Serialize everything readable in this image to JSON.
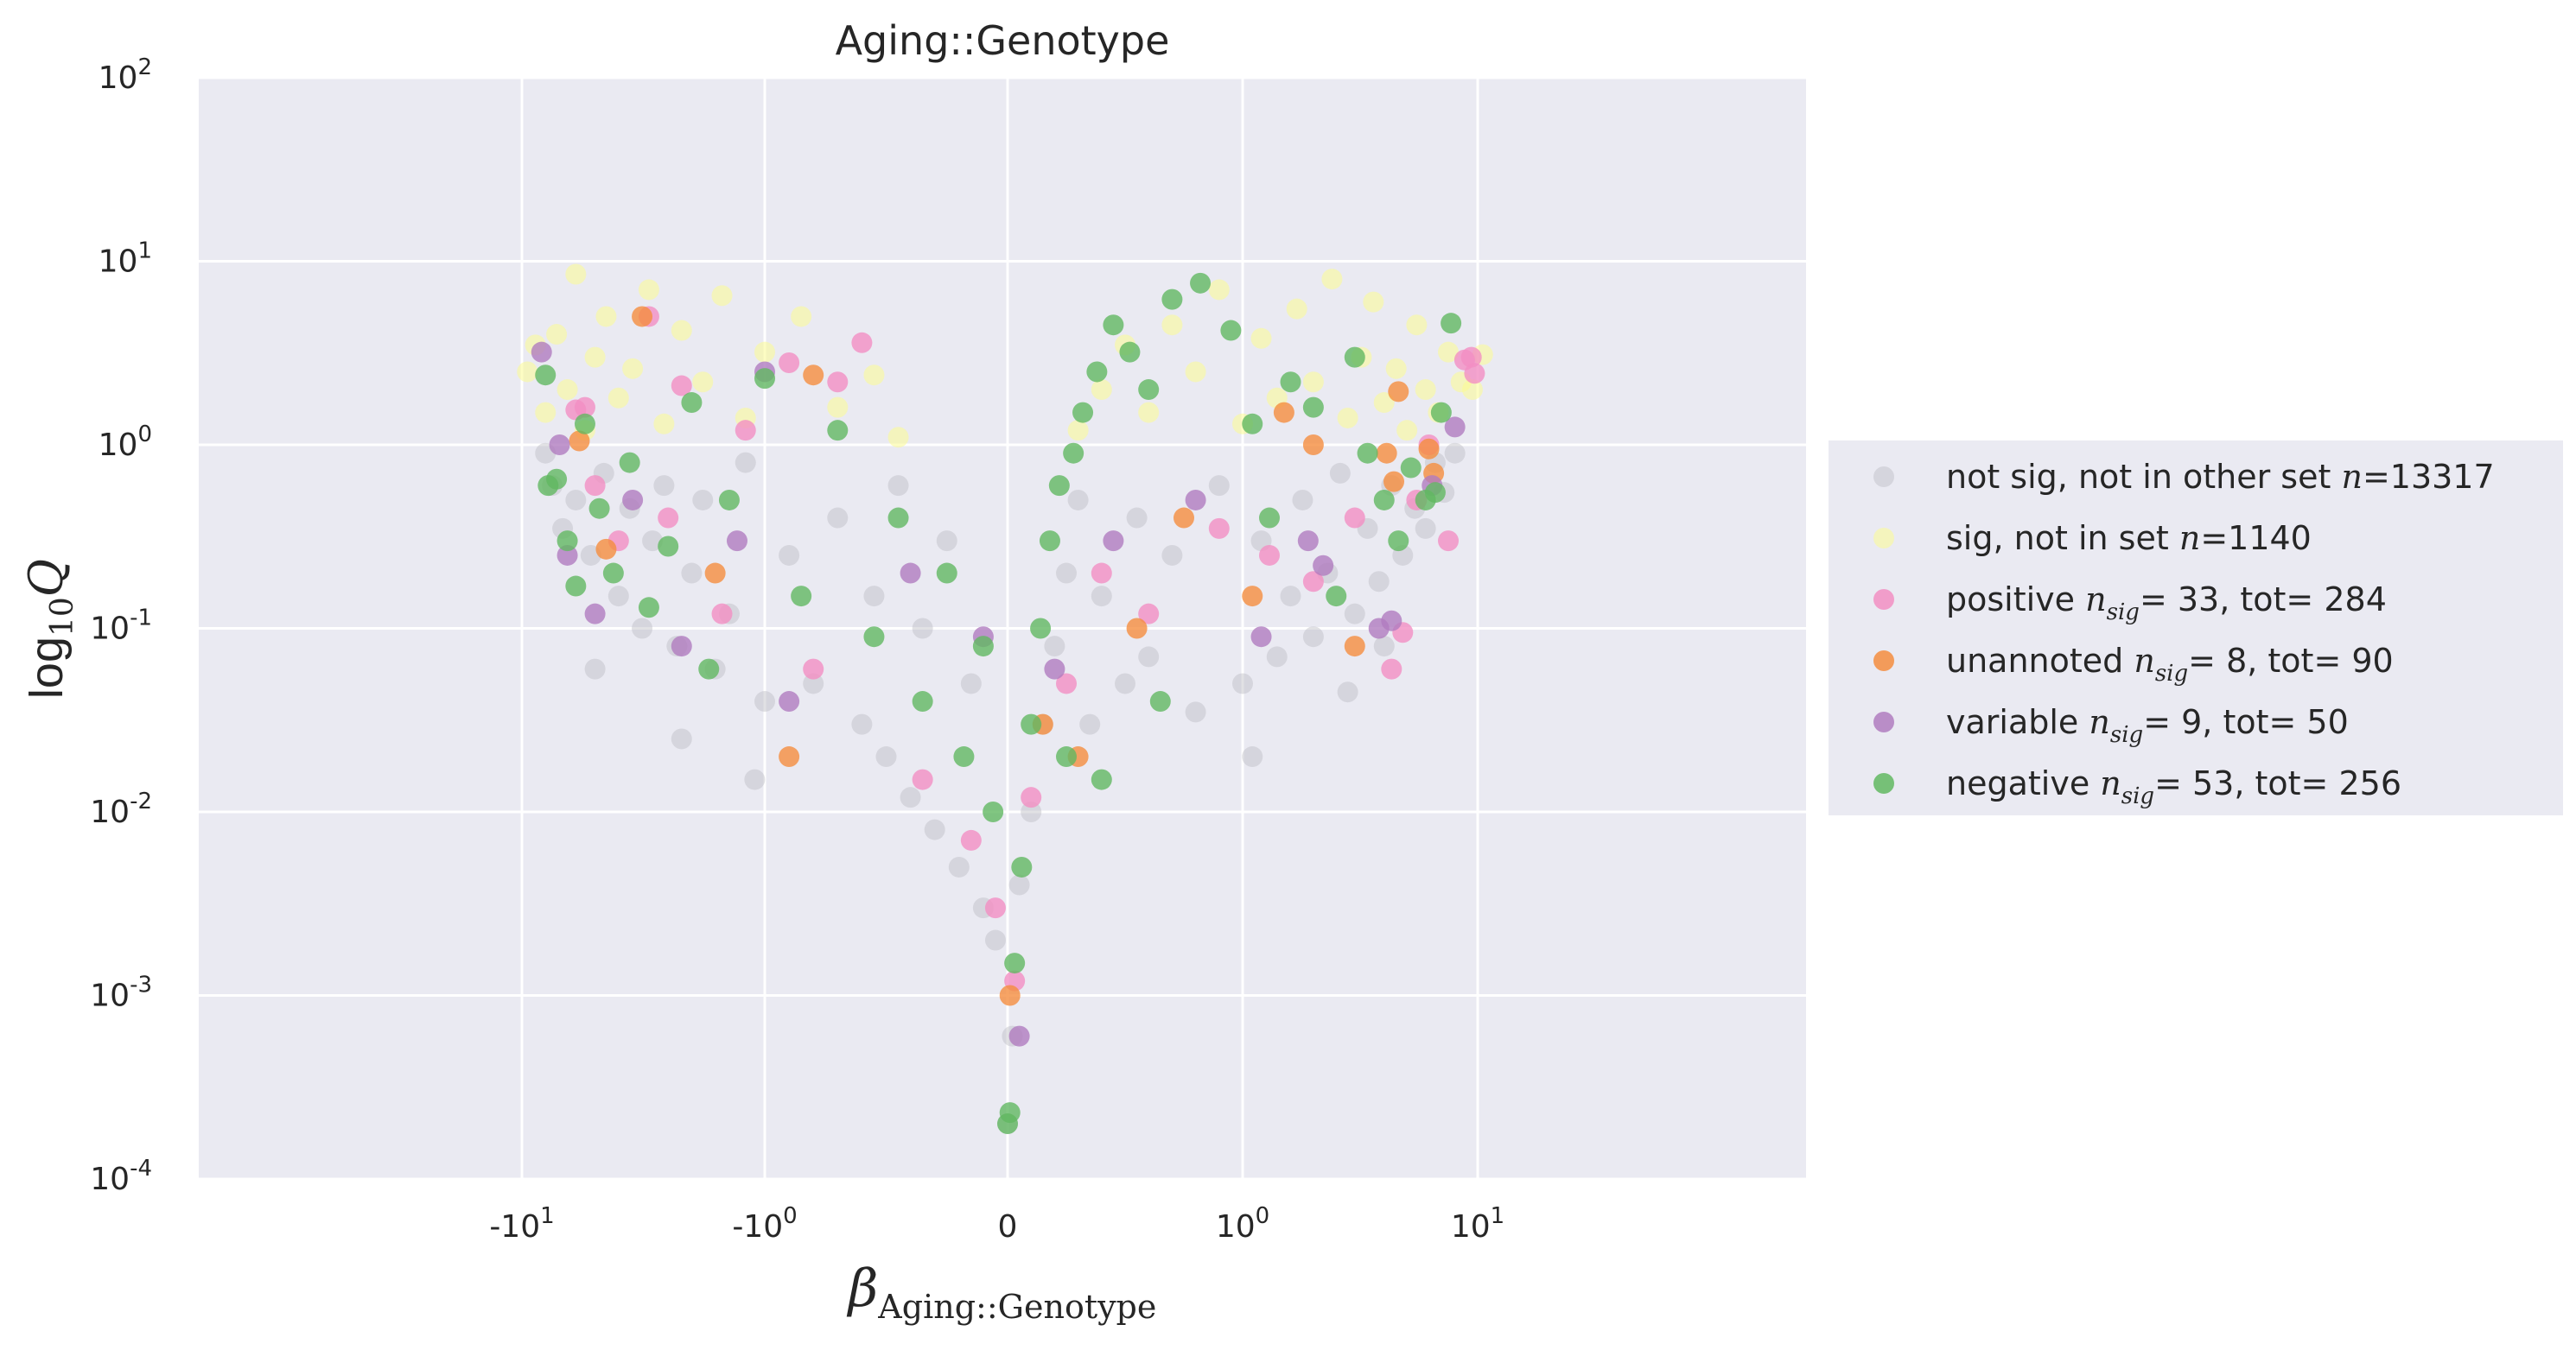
{
  "chart_data": {
    "type": "scatter",
    "title": "Aging::Genotype",
    "xlabel": "β_Aging::Genotype",
    "ylabel": "log10 Q",
    "xlabel_main": "β",
    "xlabel_sub": "Aging::Genotype",
    "ylabel_main": "log",
    "ylabel_sub": "10",
    "ylabel_var": "Q",
    "x_scale": "symlog",
    "y_scale": "log",
    "xlim": [
      -12,
      12
    ],
    "ylim": [
      0.0001,
      100
    ],
    "grid": true,
    "background": "#eaeaf2",
    "legend_position": "right",
    "x_ticks": [
      {
        "value": -10,
        "base": "-10",
        "exp": "1"
      },
      {
        "value": -1,
        "base": "-10",
        "exp": "0"
      },
      {
        "value": 0,
        "base": "0",
        "exp": ""
      },
      {
        "value": 1,
        "base": "10",
        "exp": "0"
      },
      {
        "value": 10,
        "base": "10",
        "exp": "1"
      }
    ],
    "y_ticks": [
      {
        "value": 0.0001,
        "base": "10",
        "exp": "-4"
      },
      {
        "value": 0.001,
        "base": "10",
        "exp": "-3"
      },
      {
        "value": 0.01,
        "base": "10",
        "exp": "-2"
      },
      {
        "value": 0.1,
        "base": "10",
        "exp": "-1"
      },
      {
        "value": 1,
        "base": "10",
        "exp": "0"
      },
      {
        "value": 10,
        "base": "10",
        "exp": "1"
      },
      {
        "value": 100,
        "base": "10",
        "exp": "2"
      }
    ],
    "series": [
      {
        "name": "not sig, not in other set n=13317",
        "label": "not sig, not in other set ",
        "math": "n",
        "rest": "=13317",
        "color": "#bdbdc4",
        "n": 13317,
        "points": [
          [
            -8.0,
            0.9
          ],
          [
            -7.5,
            0.6
          ],
          [
            -6.8,
            0.35
          ],
          [
            -6.0,
            0.5
          ],
          [
            -5.2,
            0.25
          ],
          [
            -4.6,
            0.7
          ],
          [
            -4.0,
            0.15
          ],
          [
            -3.6,
            0.45
          ],
          [
            -3.2,
            0.1
          ],
          [
            -2.9,
            0.3
          ],
          [
            -2.6,
            0.6
          ],
          [
            -2.3,
            0.08
          ],
          [
            -2.0,
            0.2
          ],
          [
            -1.8,
            0.5
          ],
          [
            -1.6,
            0.06
          ],
          [
            -1.4,
            0.12
          ],
          [
            -1.2,
            0.8
          ],
          [
            -1.0,
            0.04
          ],
          [
            -0.9,
            0.25
          ],
          [
            -0.8,
            0.05
          ],
          [
            -0.7,
            0.4
          ],
          [
            -0.6,
            0.03
          ],
          [
            -0.55,
            0.15
          ],
          [
            -0.5,
            0.02
          ],
          [
            -0.45,
            0.6
          ],
          [
            -0.4,
            0.012
          ],
          [
            -0.35,
            0.1
          ],
          [
            -0.3,
            0.008
          ],
          [
            -0.25,
            0.3
          ],
          [
            -0.2,
            0.005
          ],
          [
            -0.15,
            0.05
          ],
          [
            -0.1,
            0.003
          ],
          [
            -0.05,
            0.002
          ],
          [
            0.0,
            0.0002
          ],
          [
            0.02,
            0.0006
          ],
          [
            0.05,
            0.004
          ],
          [
            0.1,
            0.01
          ],
          [
            0.15,
            0.03
          ],
          [
            0.2,
            0.08
          ],
          [
            0.25,
            0.2
          ],
          [
            0.3,
            0.5
          ],
          [
            0.35,
            0.03
          ],
          [
            0.4,
            0.15
          ],
          [
            0.5,
            0.05
          ],
          [
            0.55,
            0.4
          ],
          [
            0.6,
            0.07
          ],
          [
            0.7,
            0.25
          ],
          [
            0.8,
            0.035
          ],
          [
            0.9,
            0.6
          ],
          [
            1.0,
            0.05
          ],
          [
            1.2,
            0.3
          ],
          [
            1.4,
            0.07
          ],
          [
            1.6,
            0.15
          ],
          [
            1.8,
            0.5
          ],
          [
            2.0,
            0.09
          ],
          [
            2.3,
            0.2
          ],
          [
            2.6,
            0.7
          ],
          [
            3.0,
            0.12
          ],
          [
            3.4,
            0.35
          ],
          [
            3.8,
            0.18
          ],
          [
            4.3,
            0.6
          ],
          [
            4.8,
            0.25
          ],
          [
            5.4,
            0.45
          ],
          [
            6.0,
            0.35
          ],
          [
            6.6,
            0.8
          ],
          [
            7.2,
            0.55
          ],
          [
            8.0,
            0.9
          ],
          [
            -5.0,
            0.06
          ],
          [
            -2.2,
            0.025
          ],
          [
            -1.1,
            0.015
          ],
          [
            1.1,
            0.02
          ],
          [
            2.8,
            0.045
          ],
          [
            4.0,
            0.08
          ]
        ]
      },
      {
        "name": "sig, not in set n=1140",
        "label": "sig, not in set ",
        "math": "n",
        "rest": "=1140",
        "color": "#fbfb92",
        "n": 1140,
        "points": [
          [
            -9.5,
            2.5
          ],
          [
            -8.8,
            3.5
          ],
          [
            -8.0,
            1.5
          ],
          [
            -7.2,
            4.0
          ],
          [
            -6.5,
            2.0
          ],
          [
            -6.0,
            8.5
          ],
          [
            -5.5,
            1.2
          ],
          [
            -5.0,
            3.0
          ],
          [
            -4.5,
            5.0
          ],
          [
            -4.0,
            1.8
          ],
          [
            -3.5,
            2.6
          ],
          [
            -3.0,
            7.0
          ],
          [
            -2.6,
            1.3
          ],
          [
            -2.2,
            4.2
          ],
          [
            -1.8,
            2.2
          ],
          [
            -1.5,
            6.5
          ],
          [
            -1.2,
            1.4
          ],
          [
            -1.0,
            3.2
          ],
          [
            -0.85,
            5.0
          ],
          [
            -0.7,
            1.6
          ],
          [
            -0.55,
            2.4
          ],
          [
            -0.45,
            1.1
          ],
          [
            0.3,
            1.2
          ],
          [
            0.4,
            2.0
          ],
          [
            0.5,
            3.5
          ],
          [
            0.6,
            1.5
          ],
          [
            0.7,
            4.5
          ],
          [
            0.8,
            2.5
          ],
          [
            0.9,
            7.0
          ],
          [
            1.0,
            1.3
          ],
          [
            1.2,
            3.8
          ],
          [
            1.4,
            1.8
          ],
          [
            1.7,
            5.5
          ],
          [
            2.0,
            2.2
          ],
          [
            2.4,
            8.0
          ],
          [
            2.8,
            1.4
          ],
          [
            3.2,
            3.0
          ],
          [
            3.6,
            6.0
          ],
          [
            4.0,
            1.7
          ],
          [
            4.5,
            2.6
          ],
          [
            5.0,
            1.2
          ],
          [
            5.5,
            4.5
          ],
          [
            6.0,
            2.0
          ],
          [
            6.8,
            1.5
          ],
          [
            7.5,
            3.2
          ],
          [
            8.5,
            2.2
          ],
          [
            9.5,
            2.0
          ],
          [
            10.5,
            3.1
          ]
        ]
      },
      {
        "name": "positive n_sig= 33, tot= 284",
        "label": "positive ",
        "math": "n",
        "mathsub": "sig",
        "rest": "= 33, tot= 284",
        "color": "#f28fc3",
        "n_sig": 33,
        "tot": 284,
        "points": [
          [
            -6.0,
            1.55
          ],
          [
            -5.5,
            1.6
          ],
          [
            -3.0,
            5.0
          ],
          [
            -2.2,
            2.1
          ],
          [
            -1.2,
            1.2
          ],
          [
            -0.9,
            2.8
          ],
          [
            -0.7,
            2.2
          ],
          [
            -0.6,
            3.6
          ],
          [
            -5.0,
            0.6
          ],
          [
            -4.0,
            0.3
          ],
          [
            -2.5,
            0.4
          ],
          [
            -1.5,
            0.12
          ],
          [
            -0.8,
            0.06
          ],
          [
            -0.35,
            0.015
          ],
          [
            -0.15,
            0.007
          ],
          [
            -0.05,
            0.003
          ],
          [
            0.03,
            0.0012
          ],
          [
            0.1,
            0.012
          ],
          [
            0.25,
            0.05
          ],
          [
            0.4,
            0.2
          ],
          [
            0.6,
            0.12
          ],
          [
            0.9,
            0.35
          ],
          [
            1.3,
            0.25
          ],
          [
            2.0,
            0.18
          ],
          [
            3.0,
            0.4
          ],
          [
            4.3,
            0.06
          ],
          [
            4.8,
            0.095
          ],
          [
            5.5,
            0.5
          ],
          [
            6.2,
            1.0
          ],
          [
            7.5,
            0.3
          ],
          [
            8.8,
            2.9
          ],
          [
            9.4,
            3.0
          ],
          [
            9.7,
            2.45
          ]
        ]
      },
      {
        "name": "unannoted n_sig= 8, tot= 90",
        "label": "unannoted ",
        "math": "n",
        "mathsub": "sig",
        "rest": "= 8, tot= 90",
        "color": "#f58d3f",
        "n_sig": 8,
        "tot": 90,
        "points": [
          [
            -3.2,
            5.0
          ],
          [
            -0.8,
            2.4
          ],
          [
            -5.8,
            1.05
          ],
          [
            -4.5,
            0.27
          ],
          [
            -1.6,
            0.2
          ],
          [
            -0.9,
            0.02
          ],
          [
            0.15,
            0.03
          ],
          [
            0.3,
            0.02
          ],
          [
            0.55,
            0.1
          ],
          [
            0.75,
            0.4
          ],
          [
            1.1,
            0.15
          ],
          [
            1.5,
            1.5
          ],
          [
            2.0,
            1.0
          ],
          [
            3.0,
            0.08
          ],
          [
            4.1,
            0.9
          ],
          [
            4.4,
            0.63
          ],
          [
            4.6,
            1.95
          ],
          [
            6.2,
            0.95
          ],
          [
            6.5,
            0.7
          ],
          [
            0.01,
            0.001
          ]
        ]
      },
      {
        "name": "variable n_sig= 9, tot= 50",
        "label": "variable ",
        "math": "n",
        "mathsub": "sig",
        "rest": "= 9, tot= 50",
        "color": "#b07cbf",
        "n_sig": 9,
        "tot": 50,
        "points": [
          [
            -8.3,
            3.2
          ],
          [
            -7.0,
            1.0
          ],
          [
            -1.0,
            2.5
          ],
          [
            -6.5,
            0.25
          ],
          [
            -5.0,
            0.12
          ],
          [
            -3.5,
            0.5
          ],
          [
            -2.2,
            0.08
          ],
          [
            -1.3,
            0.3
          ],
          [
            -0.9,
            0.04
          ],
          [
            -0.4,
            0.2
          ],
          [
            -0.1,
            0.09
          ],
          [
            0.05,
            0.0006
          ],
          [
            0.2,
            0.06
          ],
          [
            0.45,
            0.3
          ],
          [
            0.8,
            0.5
          ],
          [
            1.2,
            0.09
          ],
          [
            1.9,
            0.3
          ],
          [
            2.2,
            0.22
          ],
          [
            3.8,
            0.1
          ],
          [
            4.3,
            0.11
          ],
          [
            6.4,
            0.6
          ],
          [
            8.0,
            1.25
          ]
        ]
      },
      {
        "name": "negative n_sig= 53, tot= 256",
        "label": "negative ",
        "math": "n",
        "mathsub": "sig",
        "rest": "= 53, tot= 256",
        "color": "#62b862",
        "n_sig": 53,
        "tot": 256,
        "points": [
          [
            -8.0,
            2.4
          ],
          [
            -7.8,
            0.6
          ],
          [
            -7.2,
            0.65
          ],
          [
            -6.5,
            0.3
          ],
          [
            -6.0,
            0.17
          ],
          [
            -5.5,
            1.3
          ],
          [
            -4.8,
            0.45
          ],
          [
            -4.2,
            0.2
          ],
          [
            -3.6,
            0.8
          ],
          [
            -3.0,
            0.13
          ],
          [
            -2.5,
            0.28
          ],
          [
            -2.0,
            1.7
          ],
          [
            -1.7,
            0.06
          ],
          [
            -1.4,
            0.5
          ],
          [
            -1.0,
            2.3
          ],
          [
            -0.85,
            0.15
          ],
          [
            -0.7,
            1.2
          ],
          [
            -0.55,
            0.09
          ],
          [
            -0.45,
            0.4
          ],
          [
            -0.35,
            0.04
          ],
          [
            -0.25,
            0.2
          ],
          [
            -0.18,
            0.02
          ],
          [
            -0.1,
            0.08
          ],
          [
            -0.06,
            0.01
          ],
          [
            0.0,
            0.0002
          ],
          [
            0.01,
            0.00023
          ],
          [
            0.03,
            0.0015
          ],
          [
            0.06,
            0.005
          ],
          [
            0.1,
            0.03
          ],
          [
            0.14,
            0.1
          ],
          [
            0.18,
            0.3
          ],
          [
            0.22,
            0.6
          ],
          [
            0.28,
            0.9
          ],
          [
            0.32,
            1.5
          ],
          [
            0.38,
            2.5
          ],
          [
            0.45,
            4.5
          ],
          [
            0.52,
            3.2
          ],
          [
            0.6,
            2.0
          ],
          [
            0.7,
            6.2
          ],
          [
            0.82,
            7.6
          ],
          [
            0.95,
            4.2
          ],
          [
            1.1,
            1.3
          ],
          [
            1.3,
            0.4
          ],
          [
            1.6,
            2.2
          ],
          [
            2.0,
            1.6
          ],
          [
            2.5,
            0.15
          ],
          [
            3.0,
            3.0
          ],
          [
            3.4,
            0.9
          ],
          [
            4.0,
            0.5
          ],
          [
            4.6,
            0.3
          ],
          [
            5.2,
            0.75
          ],
          [
            6.0,
            0.5
          ],
          [
            6.6,
            0.55
          ],
          [
            7.0,
            1.5
          ],
          [
            7.7,
            4.6
          ],
          [
            0.25,
            0.02
          ],
          [
            0.4,
            0.015
          ],
          [
            0.65,
            0.04
          ]
        ]
      }
    ]
  }
}
